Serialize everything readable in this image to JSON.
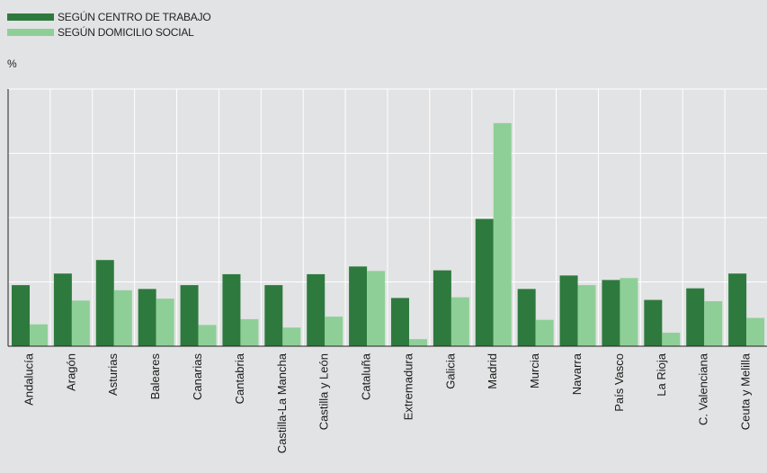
{
  "legend": {
    "series1": "SEGÚN CENTRO DE TRABAJO",
    "series2": "SEGÚN DOMICILIO SOCIAL"
  },
  "colors": {
    "series1": "#2e7a3e",
    "series2": "#8ecf98",
    "background": "#e2e3e4",
    "grid": "#ffffff"
  },
  "chart_data": {
    "type": "bar",
    "unit": "%",
    "ylim": [
      0,
      40
    ],
    "grid": true,
    "legend_position": "top-left",
    "categories": [
      "Andalucía",
      "Aragón",
      "Asturias",
      "Baleares",
      "Canarias",
      "Cantabria",
      "Castilla-La Mancha",
      "Castilla y León",
      "Cataluña",
      "Extremadura",
      "Galicia",
      "Madrid",
      "Murcia",
      "Navarra",
      "País Vasco",
      "La Rioja",
      "C. Valenciana",
      "Ceuta y Melilla"
    ],
    "series": [
      {
        "name": "SEGÚN CENTRO DE TRABAJO",
        "values": [
          9.5,
          11.3,
          13.4,
          8.9,
          9.5,
          11.2,
          9.5,
          11.2,
          12.4,
          7.5,
          11.8,
          19.8,
          8.9,
          11.0,
          10.3,
          7.2,
          9.0,
          11.3
        ]
      },
      {
        "name": "SEGÚN DOMICILIO SOCIAL",
        "values": [
          3.4,
          7.1,
          8.7,
          7.4,
          3.3,
          4.2,
          2.9,
          4.6,
          11.7,
          1.1,
          7.6,
          34.7,
          4.1,
          9.5,
          10.6,
          2.1,
          7.0,
          4.4
        ]
      }
    ]
  }
}
